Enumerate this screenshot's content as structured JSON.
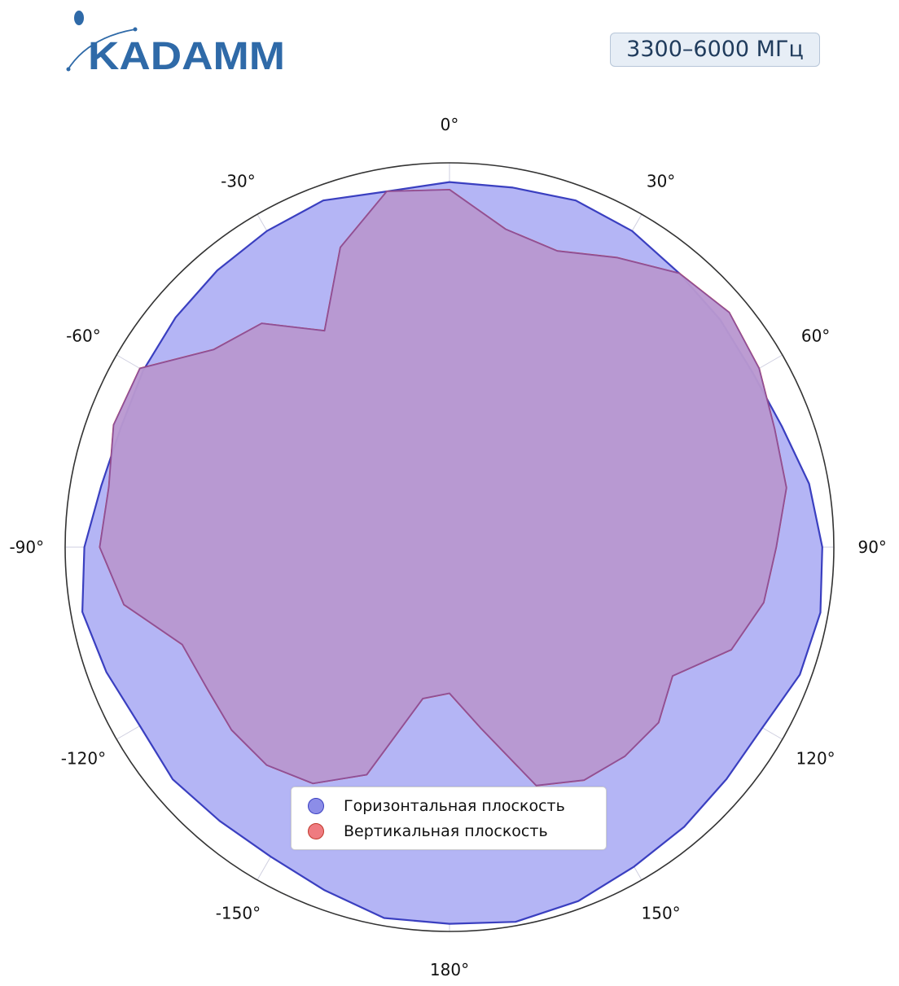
{
  "header": {
    "logo_text": "KADAMM",
    "band_label": "3300–6000 МГц"
  },
  "colors": {
    "horizontal_fill": "#b4b5f5",
    "horizontal_stroke": "#3a3fc0",
    "vertical_fill": "#f0a3a8",
    "vertical_stroke": "#c0392b",
    "overlap_fill": "#b297d5",
    "logo": "#2f6aa8"
  },
  "chart_data": {
    "type": "polar",
    "angle_direction": "clockwise",
    "zero_at": "top",
    "angle_tick_labels": [
      "0°",
      "30°",
      "60°",
      "90°",
      "120°",
      "150°",
      "180°",
      "-150°",
      "-120°",
      "-90°",
      "-60°",
      "-30°"
    ],
    "angle_ticks_deg": [
      0,
      30,
      60,
      90,
      120,
      150,
      180,
      -150,
      -120,
      -90,
      -60,
      -30
    ],
    "radial_grid_levels": 4,
    "radial_range": [
      0,
      1
    ],
    "legend_position": "bottom-center",
    "series": [
      {
        "name": "Горизонтальная плоскость",
        "angles_deg": [
          -180,
          -170,
          -160,
          -150,
          -140,
          -130,
          -120,
          -110,
          -100,
          -90,
          -80,
          -70,
          -60,
          -50,
          -40,
          -30,
          -20,
          -10,
          0,
          10,
          20,
          30,
          40,
          50,
          60,
          70,
          80,
          90,
          100,
          110,
          120,
          130,
          140,
          150,
          160,
          170,
          180
        ],
        "values": [
          0.98,
          0.98,
          0.95,
          0.93,
          0.93,
          0.94,
          0.93,
          0.95,
          0.97,
          0.95,
          0.92,
          0.91,
          0.92,
          0.93,
          0.94,
          0.95,
          0.96,
          0.94,
          0.95,
          0.95,
          0.96,
          0.95,
          0.93,
          0.92,
          0.91,
          0.92,
          0.95,
          0.97,
          0.98,
          0.97,
          0.94,
          0.94,
          0.95,
          0.96,
          0.98,
          0.99,
          0.98
        ]
      },
      {
        "name": "Вертикальная плоскость",
        "angles_deg": [
          -180,
          -170,
          -160,
          -150,
          -140,
          -130,
          -120,
          -110,
          -100,
          -90,
          -80,
          -70,
          -60,
          -50,
          -40,
          -30,
          -20,
          -10,
          0,
          10,
          20,
          30,
          40,
          50,
          60,
          70,
          80,
          90,
          100,
          110,
          120,
          130,
          140,
          150,
          160,
          170,
          180
        ],
        "values": [
          0.38,
          0.4,
          0.63,
          0.71,
          0.74,
          0.74,
          0.73,
          0.74,
          0.86,
          0.91,
          0.9,
          0.93,
          0.93,
          0.8,
          0.76,
          0.65,
          0.83,
          0.94,
          0.93,
          0.84,
          0.82,
          0.87,
          0.93,
          0.95,
          0.93,
          0.9,
          0.89,
          0.85,
          0.83,
          0.78,
          0.67,
          0.71,
          0.71,
          0.7,
          0.66,
          0.48,
          0.38
        ]
      }
    ]
  }
}
